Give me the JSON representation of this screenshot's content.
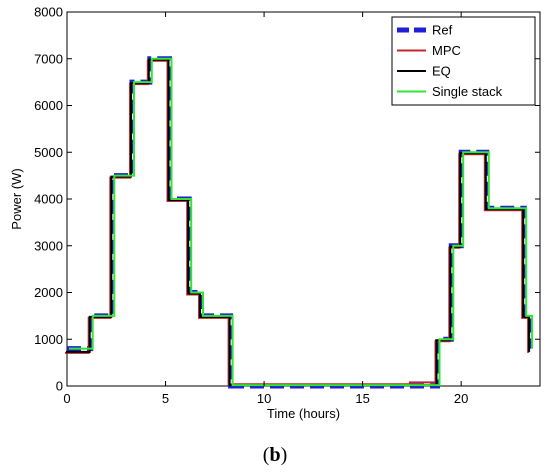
{
  "caption": {
    "open": "(",
    "letter": "b",
    "close": ")"
  },
  "chart_data": {
    "type": "line",
    "xlabel": "Time (hours)",
    "ylabel": "Power (W)",
    "xlim": [
      0,
      24
    ],
    "ylim": [
      0,
      8000
    ],
    "xticks": [
      0,
      5,
      10,
      15,
      20
    ],
    "yticks": [
      0,
      1000,
      2000,
      3000,
      4000,
      5000,
      6000,
      7000,
      8000
    ],
    "grid": false,
    "legend_position": "top-right",
    "step": true,
    "series": [
      {
        "name": "Ref",
        "color": "#1f1fd8",
        "style": "dashed",
        "x": [
          0,
          1.2,
          1.2,
          2.3,
          2.3,
          3.3,
          3.3,
          4.2,
          4.2,
          5.2,
          5.2,
          6.2,
          6.2,
          6.8,
          6.8,
          8.3,
          8.3,
          18.8,
          18.8,
          19.5,
          19.5,
          20.0,
          20.0,
          21.3,
          21.3,
          23.2,
          23.2,
          23.5,
          23.5
        ],
        "y": [
          800,
          800,
          1500,
          1500,
          4500,
          4500,
          6500,
          6500,
          7000,
          7000,
          4000,
          4000,
          2000,
          2000,
          1500,
          1500,
          0,
          0,
          1000,
          1000,
          3000,
          3000,
          5000,
          5000,
          3800,
          3800,
          1500,
          1500,
          800
        ]
      },
      {
        "name": "MPC",
        "color": "#c0282d",
        "style": "solid",
        "x": [
          0,
          1.2,
          1.2,
          2.3,
          2.3,
          3.3,
          3.3,
          4.2,
          4.2,
          5.2,
          5.2,
          6.2,
          6.2,
          6.8,
          6.8,
          8.3,
          8.3,
          17.5,
          17.5,
          18.8,
          18.8,
          19.5,
          19.5,
          20.0,
          20.0,
          21.3,
          21.3,
          23.2,
          23.2,
          23.5,
          23.5
        ],
        "y": [
          750,
          750,
          1500,
          1500,
          4500,
          4500,
          6500,
          6500,
          7000,
          7000,
          4000,
          4000,
          2000,
          2000,
          1500,
          1500,
          80,
          80,
          120,
          120,
          1000,
          1000,
          3000,
          3000,
          5000,
          5000,
          3800,
          3800,
          1500,
          1500,
          750
        ]
      },
      {
        "name": "EQ",
        "color": "#000000",
        "style": "solid",
        "x": [
          0,
          1.2,
          1.2,
          2.3,
          2.3,
          3.3,
          3.3,
          4.2,
          4.2,
          5.2,
          5.2,
          6.2,
          6.2,
          6.8,
          6.8,
          8.3,
          8.3,
          18.8,
          18.8,
          19.5,
          19.5,
          20.0,
          20.0,
          21.3,
          21.3,
          23.2,
          23.2,
          23.5,
          23.5
        ],
        "y": [
          750,
          750,
          1500,
          1500,
          4500,
          4500,
          6500,
          6500,
          7000,
          7000,
          4000,
          4000,
          2000,
          2000,
          1500,
          1500,
          40,
          40,
          1000,
          1000,
          3000,
          3000,
          5000,
          5000,
          3800,
          3800,
          1500,
          1500,
          750
        ]
      },
      {
        "name": "Single stack",
        "color": "#33e633",
        "style": "solid",
        "x": [
          0,
          1.2,
          1.2,
          2.3,
          2.3,
          3.3,
          3.3,
          4.2,
          4.2,
          5.2,
          5.2,
          6.2,
          6.2,
          6.8,
          6.8,
          8.3,
          8.3,
          18.8,
          18.8,
          19.5,
          19.5,
          20.0,
          20.0,
          21.3,
          21.3,
          23.2,
          23.2,
          23.5,
          23.5
        ],
        "y": [
          800,
          800,
          1500,
          1500,
          4500,
          4500,
          6500,
          6500,
          7000,
          7000,
          4000,
          4000,
          2000,
          2000,
          1500,
          1500,
          20,
          20,
          1000,
          1000,
          3000,
          3000,
          5000,
          5000,
          3800,
          3800,
          1500,
          1500,
          800
        ]
      }
    ]
  }
}
